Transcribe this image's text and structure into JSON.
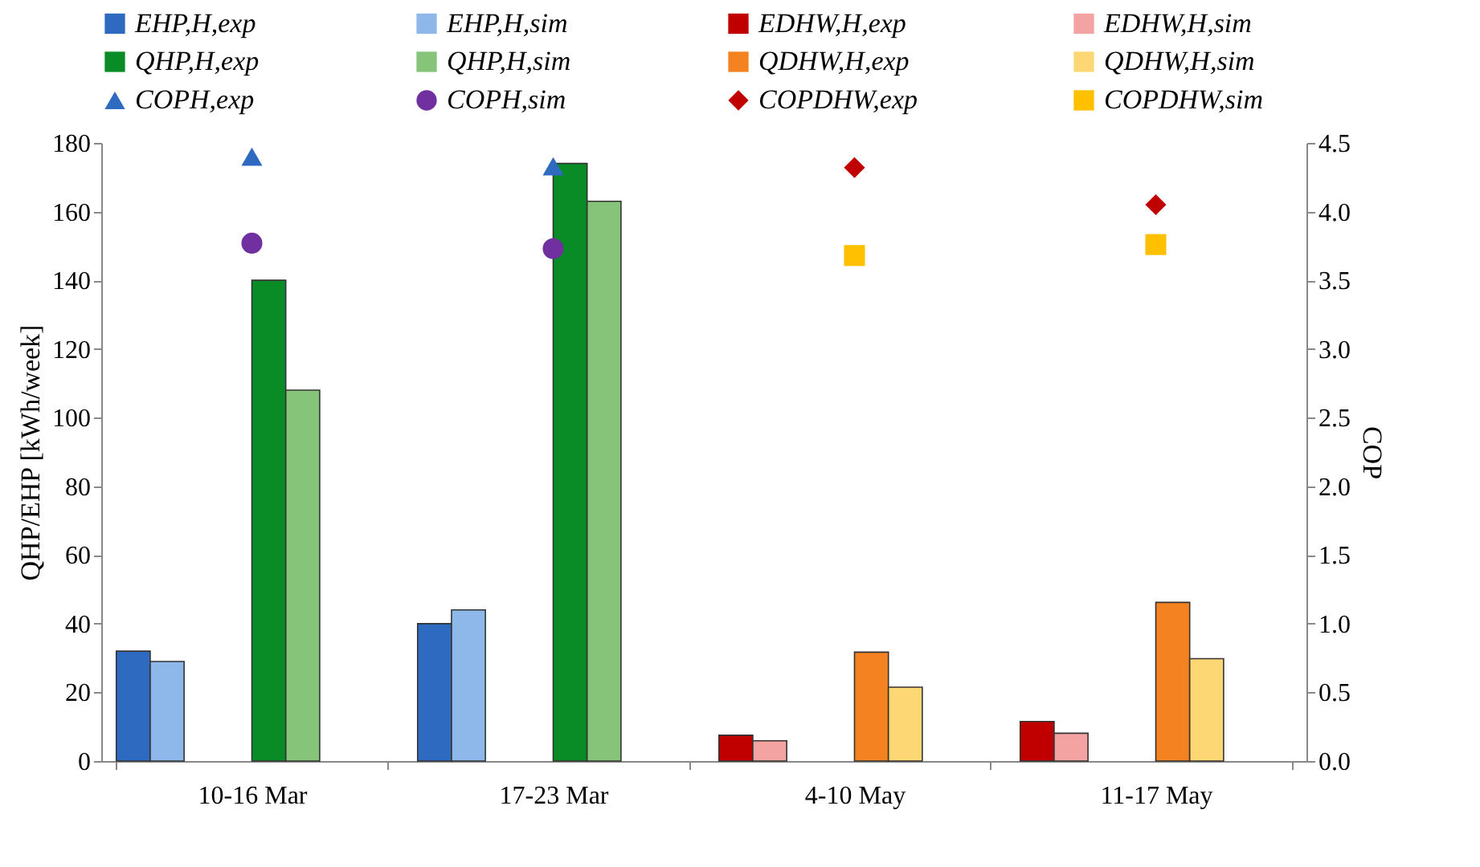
{
  "chart_data": {
    "type": "bar",
    "ylabel": "QHP/EHP [kWh/week]",
    "y2label": "COP",
    "categories": [
      "10-16 Mar",
      "17-23 Mar",
      "4-10 May",
      "11-17 May"
    ],
    "series": [
      {
        "name": "EHP,H,exp",
        "color": "#2e6bc0",
        "values": [
          32,
          40,
          null,
          null
        ]
      },
      {
        "name": "EHP,H,sim",
        "color": "#8fb8ea",
        "values": [
          29,
          44,
          null,
          null
        ]
      },
      {
        "name": "EDHW,H,exp",
        "color": "#c00000",
        "values": [
          null,
          null,
          7.5,
          11.5
        ]
      },
      {
        "name": "EDHW,H,sim",
        "color": "#f4a3a3",
        "values": [
          null,
          null,
          5.9,
          8.1
        ]
      },
      {
        "name": "QHP,H,exp",
        "color": "#098b26",
        "values": [
          140,
          174,
          null,
          null
        ]
      },
      {
        "name": "QHP,H,sim",
        "color": "#86c47a",
        "values": [
          108,
          163,
          null,
          null
        ]
      },
      {
        "name": "QDHW,H,exp",
        "color": "#f58220",
        "values": [
          null,
          null,
          31.7,
          46.2
        ]
      },
      {
        "name": "QDHW,H,sim",
        "color": "#fcd774",
        "values": [
          null,
          null,
          21.5,
          29.8
        ]
      },
      {
        "name": "COPH,exp",
        "type": "scatter",
        "marker": "triangle",
        "axis": "y2",
        "color": "#2e6bc0",
        "values": [
          4.4,
          4.33,
          null,
          null
        ]
      },
      {
        "name": "COPH,sim",
        "type": "scatter",
        "marker": "circle",
        "axis": "y2",
        "color": "#7030a0",
        "values": [
          3.77,
          3.73,
          null,
          null
        ]
      },
      {
        "name": "COPDHW,exp",
        "type": "scatter",
        "marker": "diamond",
        "axis": "y2",
        "color": "#c00000",
        "values": [
          null,
          null,
          4.32,
          4.05
        ]
      },
      {
        "name": "COPDHW,sim",
        "type": "scatter",
        "marker": "square",
        "axis": "y2",
        "color": "#ffc000",
        "values": [
          null,
          null,
          3.68,
          3.76
        ]
      }
    ],
    "ylim": [
      0,
      180
    ],
    "yticks": [
      0,
      20,
      40,
      60,
      80,
      100,
      120,
      140,
      160,
      180
    ],
    "y2lim": [
      0,
      4.5
    ],
    "y2ticks": [
      {
        "value": 0,
        "label": "0.0"
      },
      {
        "value": 0.5,
        "label": "0.5"
      },
      {
        "value": 1,
        "label": "1.0"
      },
      {
        "value": 1.5,
        "label": "1.5"
      },
      {
        "value": 2,
        "label": "2.0"
      },
      {
        "value": 2.5,
        "label": "2.5"
      },
      {
        "value": 3,
        "label": "3.0"
      },
      {
        "value": 3.5,
        "label": "3.5"
      },
      {
        "value": 4,
        "label": "4.0"
      },
      {
        "value": 4.5,
        "label": "4.5"
      }
    ],
    "grid": false,
    "legend": "top"
  }
}
